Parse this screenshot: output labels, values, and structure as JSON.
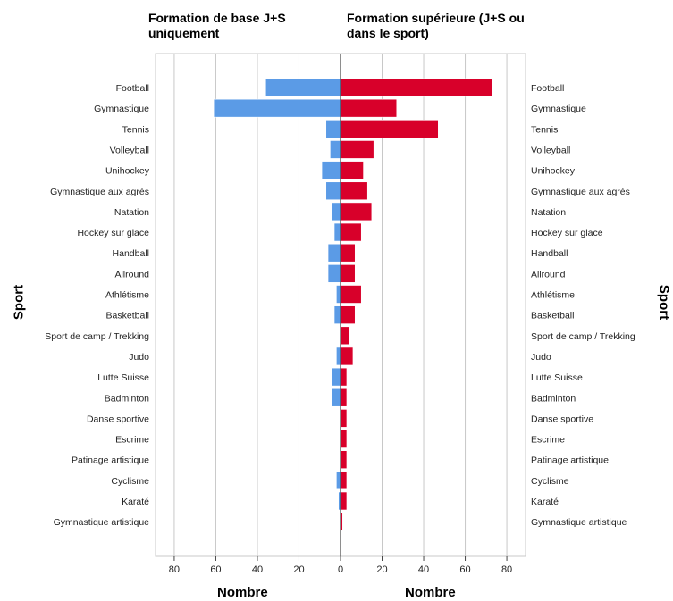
{
  "chart_data": {
    "type": "bar",
    "orientation": "horizontal",
    "layout": "population-pyramid",
    "categories": [
      "Football",
      "Gymnastique",
      "Tennis",
      "Volleyball",
      "Unihockey",
      "Gymnastique aux agrès",
      "Natation",
      "Hockey sur glace",
      "Handball",
      "Allround",
      "Athlétisme",
      "Basketball",
      "Sport de camp / Trekking",
      "Judo",
      "Lutte Suisse",
      "Badminton",
      "Danse sportive",
      "Escrime",
      "Patinage artistique",
      "Cyclisme",
      "Karaté",
      "Gymnastique artistique"
    ],
    "series": [
      {
        "name": "Formation de base J+S uniquement",
        "side": "left",
        "color": "#5b9be6",
        "values": [
          36,
          61,
          7,
          5,
          9,
          7,
          4,
          3,
          6,
          6,
          2,
          3,
          0,
          2,
          4,
          4,
          0,
          0,
          0,
          2,
          1,
          0
        ]
      },
      {
        "name": "Formation supérieure (J+S ou dans le sport)",
        "side": "right",
        "color": "#d8002a",
        "values": [
          73,
          27,
          47,
          16,
          11,
          13,
          15,
          10,
          7,
          7,
          10,
          7,
          4,
          6,
          3,
          3,
          3,
          3,
          3,
          3,
          3,
          1
        ]
      }
    ],
    "titles": {
      "left": "Formation de base J+S uniquement",
      "right": "Formation supérieure (J+S ou dans le sport)"
    },
    "xlabel_left": "Nombre",
    "xlabel_right": "Nombre",
    "ylabel_left": "Sport",
    "ylabel_right": "Sport",
    "xlim": [
      0,
      89
    ],
    "xticks": [
      0,
      20,
      40,
      60,
      80
    ],
    "grid": "vertical"
  }
}
